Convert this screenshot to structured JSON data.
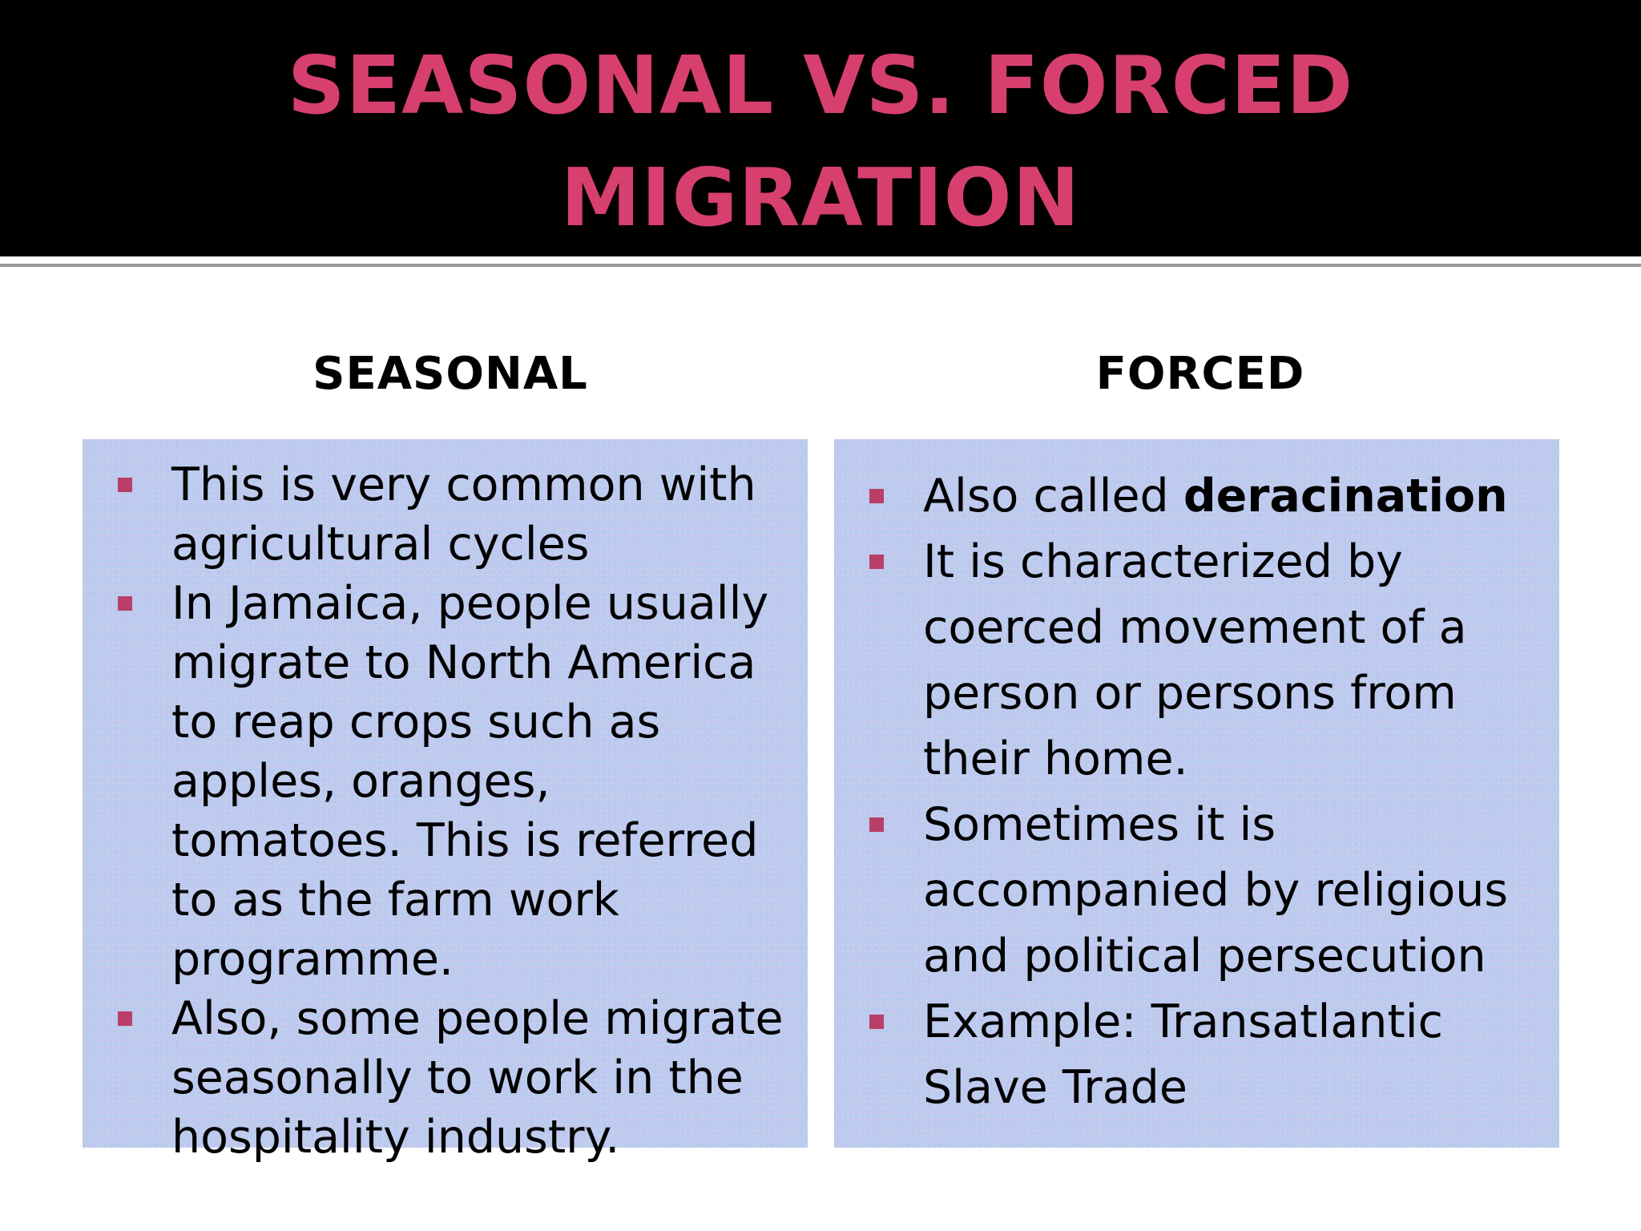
{
  "slide": {
    "title_line1": "SEASONAL VS. FORCED",
    "title_line2": "MIGRATION",
    "title_color": "#d63f6e",
    "bullet_color": "#b93f68"
  },
  "seasonal": {
    "heading": "SEASONAL",
    "items": [
      {
        "text": "This is very common with agricultural cycles"
      },
      {
        "text": "In Jamaica, people usually migrate to North America to reap crops such as apples, oranges, tomatoes. This is referred to as the farm work programme."
      },
      {
        "text": "Also, some people migrate seasonally to work in the hospitality industry."
      }
    ]
  },
  "forced": {
    "heading": "FORCED",
    "items": [
      {
        "prefix": "Also called ",
        "bold": "deracination"
      },
      {
        "text": "It is characterized by coerced movement of a person or persons from their home."
      },
      {
        "text": "Sometimes it is accompanied by religious and political persecution"
      },
      {
        "text": "Example: Transatlantic Slave Trade"
      }
    ]
  }
}
